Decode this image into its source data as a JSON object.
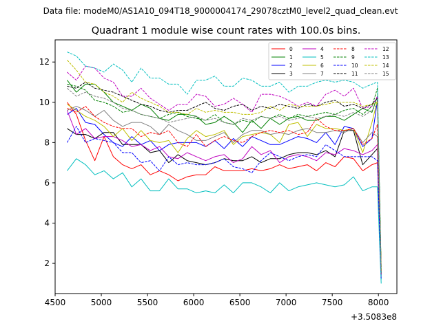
{
  "figure": {
    "suptitle": "Data file: modeM0/AS1A10_094T18_9000004174_29078cztM0_level2_quad_clean.evt"
  },
  "chart_data": {
    "type": "line",
    "title": "Quadrant 1 module wise count rates with 100.0s bins.",
    "xlabel": "",
    "ylabel": "",
    "x_offset_label": "+3.5083e8",
    "xlim": [
      4500,
      8200
    ],
    "ylim": [
      0.5,
      13.1
    ],
    "xticks": [
      4500,
      5000,
      5500,
      6000,
      6500,
      7000,
      7500,
      8000
    ],
    "yticks": [
      2,
      4,
      6,
      8,
      10,
      12
    ],
    "grid": false,
    "legend": {
      "placement": "top-right",
      "columns": 4
    },
    "x": [
      4630,
      4730,
      4830,
      4930,
      5030,
      5130,
      5230,
      5330,
      5430,
      5530,
      5630,
      5730,
      5830,
      5930,
      6030,
      6130,
      6230,
      6330,
      6430,
      6530,
      6630,
      6730,
      6830,
      6930,
      7030,
      7130,
      7230,
      7330,
      7430,
      7530,
      7630,
      7730,
      7830,
      7930,
      7990,
      8030
    ],
    "series": [
      {
        "name": "0",
        "color": "#ff0000",
        "dash": "solid",
        "values": [
          10.0,
          9.4,
          8.1,
          7.1,
          8.3,
          7.3,
          6.9,
          6.7,
          6.9,
          6.4,
          6.6,
          6.4,
          6.1,
          6.3,
          6.4,
          6.4,
          6.8,
          6.6,
          6.6,
          6.6,
          6.7,
          6.6,
          6.7,
          6.9,
          6.7,
          6.8,
          6.9,
          6.6,
          7.0,
          6.8,
          7.3,
          7.2,
          6.6,
          6.9,
          7.0,
          1.6
        ]
      },
      {
        "name": "1",
        "color": "#008000",
        "dash": "solid",
        "values": [
          11.1,
          10.5,
          10.9,
          10.9,
          10.5,
          10.0,
          9.8,
          9.6,
          9.9,
          9.7,
          9.2,
          9.1,
          9.4,
          9.4,
          9.3,
          8.9,
          9.0,
          9.3,
          9.0,
          8.5,
          9.1,
          8.7,
          9.2,
          8.9,
          9.2,
          9.3,
          9.1,
          9.1,
          9.3,
          9.3,
          9.1,
          9.4,
          9.7,
          9.5,
          10.3,
          1.8
        ]
      },
      {
        "name": "2",
        "color": "#0000ff",
        "dash": "solid",
        "values": [
          9.4,
          9.7,
          9.0,
          8.9,
          8.4,
          8.0,
          7.8,
          8.3,
          7.9,
          8.1,
          7.6,
          7.9,
          8.0,
          8.0,
          8.0,
          7.8,
          8.1,
          7.7,
          8.2,
          7.8,
          8.3,
          8.1,
          7.9,
          7.9,
          8.1,
          8.3,
          8.2,
          8.0,
          8.5,
          7.9,
          8.8,
          8.7,
          7.8,
          8.2,
          10.1,
          1.4
        ]
      },
      {
        "name": "3",
        "color": "#000000",
        "dash": "solid",
        "values": [
          8.7,
          8.4,
          8.4,
          8.2,
          8.5,
          8.5,
          7.9,
          7.9,
          7.9,
          7.5,
          7.6,
          7.0,
          7.4,
          7.1,
          7.0,
          6.9,
          7.0,
          7.2,
          7.1,
          7.1,
          7.3,
          7.0,
          7.2,
          7.2,
          7.4,
          7.5,
          7.5,
          7.4,
          7.6,
          7.3,
          8.6,
          8.6,
          6.9,
          7.4,
          7.7,
          1.5
        ]
      },
      {
        "name": "4",
        "color": "#bf00bf",
        "dash": "solid",
        "values": [
          9.6,
          8.4,
          8.7,
          8.2,
          8.3,
          8.3,
          8.1,
          7.8,
          7.9,
          7.6,
          7.8,
          7.3,
          7.2,
          7.5,
          7.3,
          7.1,
          7.3,
          7.4,
          7.0,
          7.2,
          7.8,
          7.4,
          7.6,
          7.0,
          7.3,
          7.4,
          7.3,
          7.1,
          7.5,
          7.4,
          7.7,
          7.6,
          7.4,
          7.6,
          7.9,
          1.3
        ]
      },
      {
        "name": "5",
        "color": "#00bfbf",
        "dash": "solid",
        "values": [
          6.6,
          7.2,
          6.9,
          6.4,
          6.6,
          6.2,
          6.5,
          5.8,
          6.2,
          5.6,
          5.6,
          6.2,
          5.7,
          5.7,
          5.5,
          5.6,
          5.5,
          5.9,
          5.5,
          6.0,
          6.0,
          5.8,
          5.5,
          6.0,
          5.6,
          5.8,
          5.9,
          6.0,
          5.9,
          5.8,
          5.9,
          6.3,
          5.6,
          5.8,
          5.8,
          1.0
        ]
      },
      {
        "name": "6",
        "color": "#bfbf00",
        "dash": "solid",
        "values": [
          9.9,
          9.6,
          9.3,
          9.1,
          8.8,
          8.3,
          8.7,
          8.1,
          8.6,
          8.1,
          8.0,
          8.1,
          7.5,
          8.2,
          8.6,
          8.3,
          8.4,
          8.6,
          7.9,
          8.3,
          8.4,
          8.5,
          8.4,
          8.0,
          8.9,
          9.0,
          8.3,
          8.9,
          8.7,
          8.7,
          8.6,
          8.7,
          7.5,
          9.0,
          10.1,
          1.6
        ]
      },
      {
        "name": "7",
        "color": "#808080",
        "dash": "solid",
        "values": [
          9.6,
          9.8,
          9.6,
          9.3,
          9.6,
          9.1,
          8.8,
          9.0,
          9.0,
          8.8,
          8.4,
          8.9,
          8.6,
          8.4,
          8.1,
          8.1,
          8.3,
          8.5,
          8.0,
          8.4,
          8.6,
          8.6,
          8.4,
          8.5,
          8.4,
          8.6,
          8.7,
          8.5,
          8.5,
          8.6,
          8.5,
          8.7,
          8.0,
          8.5,
          8.3,
          1.4
        ]
      },
      {
        "name": "8",
        "color": "#ff0000",
        "dash": "dashed",
        "values": [
          9.7,
          9.5,
          9.8,
          9.3,
          9.0,
          8.8,
          8.7,
          8.7,
          8.3,
          8.5,
          8.4,
          8.6,
          8.0,
          7.8,
          8.4,
          7.8,
          8.1,
          8.3,
          8.1,
          8.0,
          8.3,
          8.5,
          8.6,
          8.5,
          8.6,
          8.4,
          8.5,
          9.2,
          8.8,
          8.6,
          8.6,
          8.7,
          7.9,
          8.2,
          8.9,
          1.8
        ]
      },
      {
        "name": "9",
        "color": "#008000",
        "dash": "dashed",
        "values": [
          10.9,
          10.8,
          10.6,
          10.1,
          10.0,
          9.8,
          9.5,
          9.6,
          9.4,
          9.3,
          9.2,
          9.4,
          9.5,
          9.3,
          9.2,
          9.1,
          9.4,
          9.0,
          8.9,
          9.1,
          9.0,
          9.3,
          9.2,
          9.4,
          9.2,
          9.4,
          9.3,
          9.4,
          9.5,
          9.4,
          9.6,
          9.7,
          9.4,
          9.8,
          10.7,
          1.7
        ]
      },
      {
        "name": "10",
        "color": "#0000ff",
        "dash": "dashed",
        "values": [
          8.0,
          8.8,
          8.0,
          8.2,
          8.1,
          8.0,
          7.5,
          7.5,
          7.0,
          7.1,
          6.6,
          7.3,
          6.9,
          7.0,
          6.9,
          6.9,
          7.0,
          7.2,
          6.8,
          6.7,
          6.5,
          7.1,
          7.5,
          7.3,
          7.1,
          7.3,
          7.4,
          7.3,
          7.9,
          7.6,
          7.3,
          7.3,
          7.3,
          7.3,
          7.1,
          1.2
        ]
      },
      {
        "name": "11",
        "color": "#000000",
        "dash": "dashed",
        "values": [
          10.8,
          10.7,
          11.0,
          10.7,
          10.6,
          10.5,
          10.3,
          10.1,
          9.9,
          9.8,
          9.6,
          9.5,
          9.6,
          9.6,
          9.8,
          10.0,
          9.7,
          9.6,
          9.8,
          9.9,
          9.6,
          9.8,
          9.7,
          9.9,
          9.8,
          9.7,
          9.9,
          9.8,
          10.0,
          10.1,
          9.8,
          9.9,
          9.7,
          9.9,
          10.2,
          1.5
        ]
      },
      {
        "name": "12",
        "color": "#bf00bf",
        "dash": "dashed",
        "values": [
          11.5,
          11.1,
          11.8,
          11.7,
          11.2,
          11.0,
          10.3,
          10.3,
          10.7,
          10.2,
          9.9,
          9.6,
          9.9,
          9.9,
          10.4,
          10.3,
          9.8,
          9.9,
          10.2,
          9.9,
          9.5,
          10.4,
          10.4,
          10.3,
          10.1,
          9.8,
          10.0,
          9.8,
          10.4,
          10.6,
          10.3,
          10.7,
          9.7,
          9.8,
          10.3,
          1.4
        ]
      },
      {
        "name": "13",
        "color": "#00bfbf",
        "dash": "dashed",
        "values": [
          12.5,
          12.3,
          11.8,
          11.7,
          11.5,
          11.9,
          11.6,
          11.0,
          11.7,
          11.2,
          11.2,
          10.9,
          10.9,
          10.4,
          11.1,
          11.1,
          11.3,
          10.8,
          10.8,
          11.2,
          11.1,
          10.8,
          10.8,
          11.0,
          10.5,
          10.8,
          10.8,
          11.0,
          11.1,
          11.0,
          11.1,
          11.0,
          10.7,
          10.9,
          11.0,
          1.2
        ]
      },
      {
        "name": "14",
        "color": "#bfbf00",
        "dash": "dashed",
        "values": [
          12.1,
          11.6,
          11.0,
          10.9,
          10.5,
          10.3,
          10.0,
          10.5,
          10.2,
          10.0,
          9.8,
          9.5,
          9.5,
          9.4,
          9.7,
          9.5,
          9.6,
          9.5,
          9.5,
          9.4,
          9.4,
          9.5,
          9.8,
          9.6,
          9.9,
          9.8,
          9.8,
          9.8,
          9.9,
          10.0,
          10.0,
          10.0,
          9.8,
          9.9,
          10.0,
          1.6
        ]
      },
      {
        "name": "15",
        "color": "#808080",
        "dash": "dashed",
        "values": [
          10.7,
          10.3,
          10.5,
          10.3,
          10.2,
          10.0,
          9.7,
          9.6,
          9.4,
          9.3,
          9.2,
          9.0,
          9.1,
          9.2,
          9.3,
          9.1,
          9.2,
          9.0,
          8.9,
          9.2,
          9.1,
          9.3,
          9.2,
          9.3,
          9.1,
          9.2,
          9.3,
          9.2,
          9.3,
          9.4,
          9.3,
          9.5,
          9.3,
          9.6,
          9.9,
          1.5
        ]
      }
    ]
  }
}
